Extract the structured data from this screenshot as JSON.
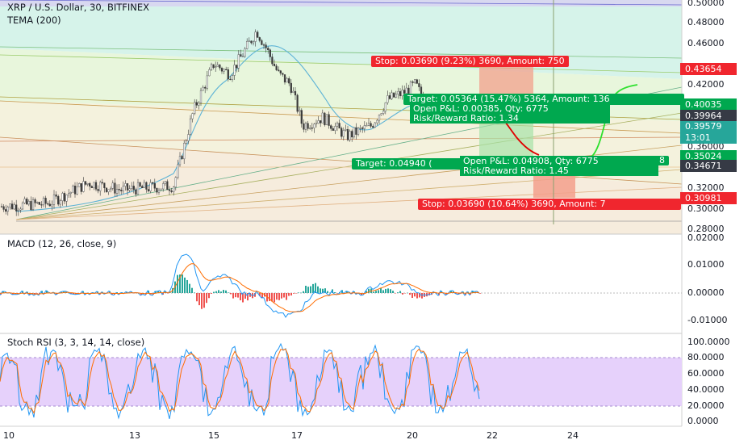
{
  "header": {
    "symbol": "XRP / U.S. Dollar, 30, BITFINEX",
    "indicator": "TEMA (200)"
  },
  "macd_pane": {
    "title": "MACD (12, 26, close, 9)"
  },
  "rsi_pane": {
    "title": "Stoch RSI (3, 3, 14, 14, close)"
  },
  "price_axis": [
    "0.50000",
    "0.48000",
    "0.46000",
    "0.42000",
    "0.36000",
    "0.32000",
    "0.30000",
    "0.28000"
  ],
  "macd_axis": [
    "0.02000",
    "0.01000",
    "0.00000",
    "-0.01000"
  ],
  "rsi_axis": [
    "100.0000",
    "80.0000",
    "60.0000",
    "40.0000",
    "20.0000",
    "0.0000"
  ],
  "time_axis": [
    "10",
    "13",
    "15",
    "17",
    "20",
    "22",
    "24"
  ],
  "price_tags": {
    "stop_upper": "0.43654",
    "target_upper": "0.40035",
    "last": "0.39964",
    "current": "0.39579",
    "countdown": "13:01",
    "target_lower": "0.35024",
    "entry_lower": "0.34671",
    "stop_lower": "0.30981"
  },
  "positions": {
    "short_stop": "Stop: 0.03690 (9.23%) 3690, Amount: 750",
    "short_target": "Target: 0.05364 (15.47%) 5364, Amount: 136",
    "short_pnl": "Open P&L: 0.00385, Qty: 6775",
    "short_rr": "Risk/Reward Ratio: 1.34",
    "long_target": "Target: 0.04940 (",
    "long_target_tail": "8",
    "long_pnl": "Open P&L: 0.04908, Qty: 6775",
    "long_rr": "Risk/Reward Ratio: 1.45",
    "long_stop": "Stop: 0.03690 (10.64%) 3690, Amount: 7"
  },
  "colors": {
    "up": "#26a69a",
    "down": "#ef5350",
    "green_tag": "#00a84f",
    "red_tag": "#f0262e",
    "dark_tag": "#363a45",
    "teal_tag": "#26a69a",
    "stoch_band": "#e1c6fb"
  },
  "chart_data": {
    "type": "candlestick",
    "symbol": "XRP/USD",
    "timeframe": "30",
    "exchange": "BITFINEX",
    "price_range": [
      0.28,
      0.5
    ],
    "close_path": [
      {
        "x": "10",
        "y": 0.3
      },
      {
        "x": "11",
        "y": 0.31
      },
      {
        "x": "12",
        "y": 0.32
      },
      {
        "x": "13",
        "y": 0.325
      },
      {
        "x": "14",
        "y": 0.33
      },
      {
        "x": "14.5",
        "y": 0.38
      },
      {
        "x": "15",
        "y": 0.43
      },
      {
        "x": "16",
        "y": 0.47
      },
      {
        "x": "16.5",
        "y": 0.43
      },
      {
        "x": "17",
        "y": 0.4
      },
      {
        "x": "18",
        "y": 0.38
      },
      {
        "x": "19",
        "y": 0.39
      },
      {
        "x": "20",
        "y": 0.415
      },
      {
        "x": "21",
        "y": 0.396
      }
    ],
    "projection": [
      {
        "x": "21.5",
        "y": 0.4
      },
      {
        "x": "22.5",
        "y": 0.375
      },
      {
        "x": "23",
        "y": 0.35
      },
      {
        "x": "23.7",
        "y": 0.35
      },
      {
        "x": "24.5",
        "y": 0.415
      }
    ]
  }
}
